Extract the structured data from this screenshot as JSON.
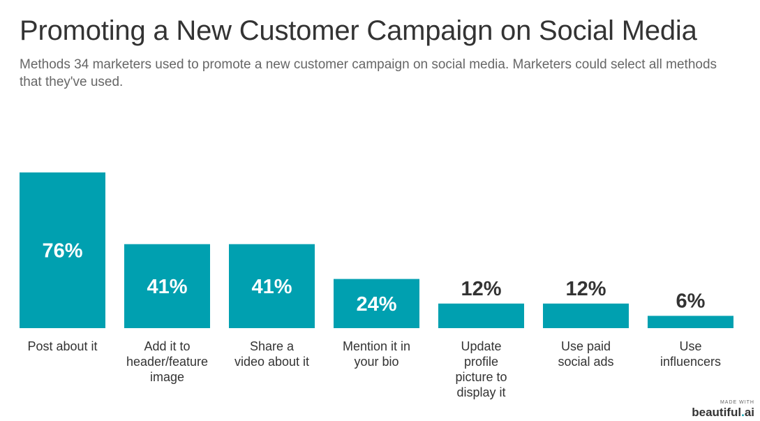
{
  "colors": {
    "bar": "#00a0b0",
    "label_inside": "#ffffff",
    "label_outside": "#333333",
    "title": "#333333",
    "subtitle": "#666666"
  },
  "chart_data": {
    "type": "bar",
    "title": "Promoting a New Customer Campaign on Social Media",
    "subtitle": "Methods 34 marketers used to promote a new customer campaign on social media. Marketers could select all methods that they've used.",
    "categories": [
      [
        "Post about it"
      ],
      [
        "Add it to",
        "header/feature",
        "image"
      ],
      [
        "Share a",
        "video about it"
      ],
      [
        "Mention it in",
        "your bio"
      ],
      [
        "Update",
        "profile",
        "picture to",
        "display it"
      ],
      [
        "Use paid",
        "social ads"
      ],
      [
        "Use",
        "influencers"
      ]
    ],
    "values": [
      76,
      41,
      41,
      24,
      12,
      12,
      6
    ],
    "value_labels": [
      "76%",
      "41%",
      "41%",
      "24%",
      "12%",
      "12%",
      "6%"
    ],
    "unit": "%",
    "ylim": [
      0,
      76
    ],
    "grid": false,
    "legend": "none"
  },
  "watermark": {
    "made_with": "MADE WITH",
    "brand_main": "beautiful",
    "brand_dot": ".",
    "brand_end": "ai"
  }
}
